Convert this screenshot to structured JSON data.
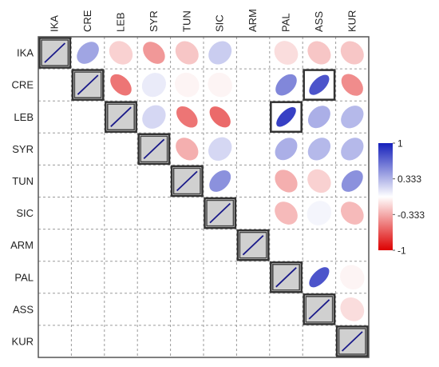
{
  "chart_data": {
    "type": "heatmap",
    "subtype": "correlation-ellipse-matrix",
    "triangle": "upper",
    "variables": [
      "IKA",
      "CRE",
      "LEB",
      "SYR",
      "TUN",
      "SIC",
      "ARM",
      "PAL",
      "ASS",
      "KUR"
    ],
    "matrix": [
      [
        1.0,
        0.45,
        -0.2,
        -0.45,
        -0.25,
        0.25,
        0.0,
        -0.15,
        -0.25,
        -0.25
      ],
      [
        null,
        1.0,
        -0.6,
        0.1,
        -0.05,
        -0.05,
        0.0,
        0.6,
        0.85,
        -0.5
      ],
      [
        null,
        null,
        1.0,
        0.2,
        -0.6,
        -0.65,
        0.0,
        0.95,
        0.4,
        0.35
      ],
      [
        null,
        null,
        null,
        1.0,
        -0.35,
        0.2,
        0.0,
        0.4,
        0.35,
        0.35
      ],
      [
        null,
        null,
        null,
        null,
        1.0,
        0.55,
        0.0,
        -0.35,
        -0.2,
        0.55
      ],
      [
        null,
        null,
        null,
        null,
        null,
        1.0,
        0.0,
        -0.3,
        0.05,
        -0.3
      ],
      [
        null,
        null,
        null,
        null,
        null,
        null,
        1.0,
        0.0,
        0.0,
        0.0
      ],
      [
        null,
        null,
        null,
        null,
        null,
        null,
        null,
        1.0,
        0.85,
        -0.05
      ],
      [
        null,
        null,
        null,
        null,
        null,
        null,
        null,
        null,
        1.0,
        -0.15
      ],
      [
        null,
        null,
        null,
        null,
        null,
        null,
        null,
        null,
        null,
        1.0
      ]
    ],
    "highlighted": [
      [
        0,
        0
      ],
      [
        1,
        1
      ],
      [
        1,
        8
      ],
      [
        2,
        2
      ],
      [
        2,
        7
      ],
      [
        3,
        3
      ],
      [
        4,
        4
      ],
      [
        5,
        5
      ],
      [
        6,
        6
      ],
      [
        7,
        7
      ],
      [
        8,
        8
      ],
      [
        9,
        9
      ]
    ],
    "color_scale": {
      "range": [
        -1,
        1
      ],
      "ticks": [
        1,
        0.333,
        -0.333,
        -1
      ],
      "tick_labels": [
        "1",
        "0.333",
        "-0.333",
        "-1"
      ],
      "colors": {
        "neg": "#dd0000",
        "mid": "#ffffff",
        "pos": "#1520bb"
      }
    },
    "diagonal_color": "#d0d0d0",
    "diagonal_line_color": "#1a1a8a",
    "grid": "dashed",
    "legend_position": "right"
  }
}
